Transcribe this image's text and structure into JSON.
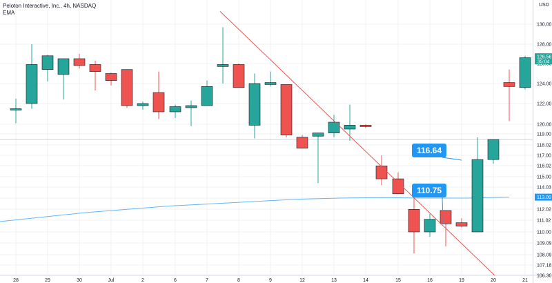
{
  "header": {
    "symbol": "Peloton Interactive, Inc., 4h, NASDAQ",
    "indicator": "EMA"
  },
  "axis": {
    "currency": "USD"
  },
  "colors": {
    "up": "#26a69a",
    "down": "#ef5350",
    "ema": "#64b5f6",
    "trendline": "#ef5350",
    "callout": "#2196f3",
    "last_price": "#26a69a",
    "ema_tag": "#2196f3",
    "grid": "#e6e6e6",
    "hline": "#d1d4dc"
  },
  "chart_data": {
    "type": "candlestick",
    "x_ticks": [
      "28",
      "29",
      "30",
      "Jul",
      "2",
      "6",
      "7",
      "8",
      "9",
      "12",
      "13",
      "14",
      "15",
      "16",
      "19",
      "20",
      "21"
    ],
    "y_ticks": [
      106.3,
      107.18,
      108.09,
      109.09,
      110.0,
      111.02,
      112.02,
      113.0,
      114.03,
      115.0,
      116.02,
      117.0,
      118.02,
      119.0,
      120.0,
      122.0,
      124.0,
      126.0,
      128.0,
      130.0
    ],
    "candles": [
      {
        "x": "28.0",
        "o": 121.5,
        "h": 122.5,
        "l": 120.1,
        "c": 121.5
      },
      {
        "x": "28.5",
        "o": 122.0,
        "h": 128.0,
        "l": 121.5,
        "c": 125.9
      },
      {
        "x": "29.0",
        "o": 125.4,
        "h": 126.9,
        "l": 124.2,
        "c": 126.8
      },
      {
        "x": "29.5",
        "o": 124.9,
        "h": 126.5,
        "l": 122.4,
        "c": 126.5
      },
      {
        "x": "30.0",
        "o": 126.5,
        "h": 127.0,
        "l": 125.5,
        "c": 125.8
      },
      {
        "x": "30.5",
        "o": 125.9,
        "h": 126.3,
        "l": 123.3,
        "c": 125.2
      },
      {
        "x": "Jul.0",
        "o": 125.0,
        "h": 125.1,
        "l": 123.8,
        "c": 124.3
      },
      {
        "x": "Jul.5",
        "o": 125.4,
        "h": 125.4,
        "l": 121.6,
        "c": 121.8
      },
      {
        "x": "2.0",
        "o": 121.8,
        "h": 122.2,
        "l": 121.4,
        "c": 122.0
      },
      {
        "x": "2.5",
        "o": 123.1,
        "h": 125.2,
        "l": 120.5,
        "c": 121.2
      },
      {
        "x": "6.0",
        "o": 121.2,
        "h": 121.9,
        "l": 120.6,
        "c": 121.7
      },
      {
        "x": "6.5",
        "o": 121.6,
        "h": 122.3,
        "l": 119.8,
        "c": 121.8
      },
      {
        "x": "7.0",
        "o": 121.8,
        "h": 124.3,
        "l": 121.8,
        "c": 123.7
      },
      {
        "x": "7.5",
        "o": 125.7,
        "h": 129.7,
        "l": 124.0,
        "c": 125.9
      },
      {
        "x": "8.0",
        "o": 125.9,
        "h": 126.0,
        "l": 123.6,
        "c": 123.6
      },
      {
        "x": "8.5",
        "o": 119.9,
        "h": 125.0,
        "l": 118.6,
        "c": 124.0
      },
      {
        "x": "9.0",
        "o": 123.9,
        "h": 125.2,
        "l": 123.7,
        "c": 124.1
      },
      {
        "x": "9.5",
        "o": 123.9,
        "h": 123.9,
        "l": 118.7,
        "c": 118.9
      },
      {
        "x": "12.0",
        "o": 118.7,
        "h": 118.9,
        "l": 117.7,
        "c": 117.7
      },
      {
        "x": "12.5",
        "o": 118.8,
        "h": 119.0,
        "l": 114.4,
        "c": 119.1
      },
      {
        "x": "13.0",
        "o": 119.1,
        "h": 120.9,
        "l": 118.7,
        "c": 120.2
      },
      {
        "x": "13.5",
        "o": 119.5,
        "h": 121.9,
        "l": 118.4,
        "c": 119.9
      },
      {
        "x": "14.0",
        "o": 119.9,
        "h": 120.0,
        "l": 119.6,
        "c": 119.8
      },
      {
        "x": "14.5",
        "o": 116.0,
        "h": 117.0,
        "l": 114.2,
        "c": 114.8
      },
      {
        "x": "15.0",
        "o": 114.8,
        "h": 115.4,
        "l": 113.4,
        "c": 113.4
      },
      {
        "x": "15.5",
        "o": 112.0,
        "h": 113.5,
        "l": 108.2,
        "c": 110.0
      },
      {
        "x": "16.0",
        "o": 110.0,
        "h": 111.6,
        "l": 109.6,
        "c": 111.1
      },
      {
        "x": "16.5",
        "o": 111.9,
        "h": 111.9,
        "l": 108.8,
        "c": 110.7
      },
      {
        "x": "19.0",
        "o": 110.8,
        "h": 111.2,
        "l": 110.4,
        "c": 110.5
      },
      {
        "x": "19.5",
        "o": 110.0,
        "h": 118.7,
        "l": 110.0,
        "c": 116.6
      },
      {
        "x": "20.0",
        "o": 116.6,
        "h": 118.5,
        "l": 116.2,
        "c": 118.5
      },
      {
        "x": "20.5",
        "o": 124.1,
        "h": 125.4,
        "l": 120.3,
        "c": 123.7
      },
      {
        "x": "21.0",
        "o": 123.6,
        "h": 126.8,
        "l": 123.4,
        "c": 126.6
      }
    ],
    "ema": [
      110.9,
      111.3,
      111.7,
      112.0,
      112.3,
      112.5,
      112.7,
      112.9,
      113.0,
      113.05,
      113.0,
      113.0,
      113.09
    ],
    "horizontal_line": 118.5,
    "trendline": {
      "from": {
        "x": "8.5",
        "y": 131.0
      },
      "to": {
        "x": "20.0",
        "y": 106.3
      }
    },
    "annotations": [
      {
        "label": "116.64",
        "value": 116.64
      },
      {
        "label": "110.75",
        "value": 110.75
      }
    ],
    "last_price": {
      "value": "126.56",
      "timer": "35:04"
    },
    "ema_last": {
      "value": "113.09"
    }
  }
}
